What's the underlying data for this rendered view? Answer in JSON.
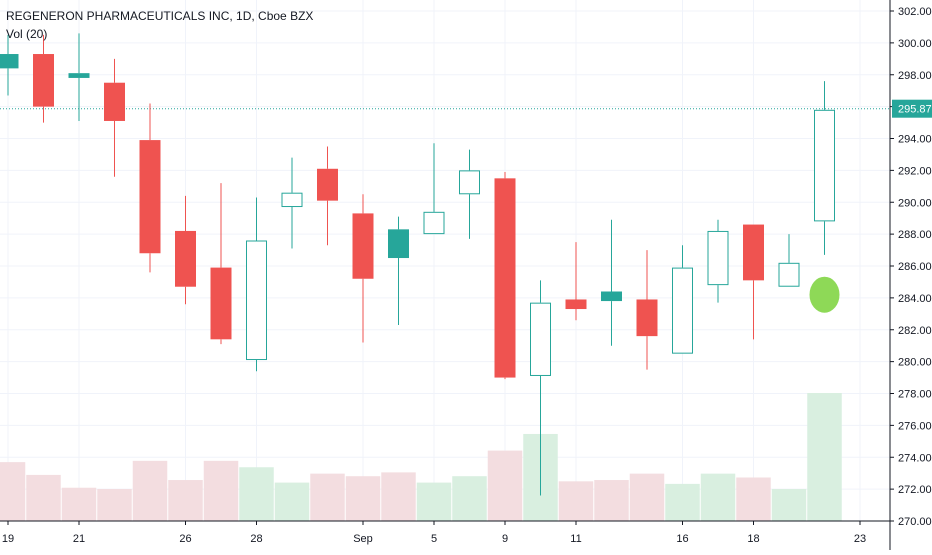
{
  "header": {
    "title": "REGENERON PHARMACEUTICALS INC, 1D, Cboe BZX",
    "volume_label": "Vol (20)"
  },
  "price_label": "295.87",
  "colors": {
    "up": "#26a69a",
    "down": "#ef5350",
    "up_volume": "#d9efe0",
    "down_volume": "#f3dde0",
    "volume_highlight": "#d9efe0",
    "marker": "#8ed957",
    "price_line": "#26a69a"
  },
  "chart_data": {
    "type": "candlestick",
    "symbol": "REGENERON PHARMACEUTICALS INC",
    "interval": "1D",
    "exchange": "Cboe BZX",
    "ylim": [
      270,
      303
    ],
    "y_ticks": [
      "302.00",
      "300.00",
      "298.00",
      "296.00",
      "294.00",
      "292.00",
      "290.00",
      "288.00",
      "286.00",
      "284.00",
      "282.00",
      "280.00",
      "278.00",
      "276.00",
      "274.00",
      "272.00",
      "270.00"
    ],
    "x_ticks": [
      {
        "label": "19",
        "index": 0
      },
      {
        "label": "21",
        "index": 2
      },
      {
        "label": "26",
        "index": 5
      },
      {
        "label": "28",
        "index": 7
      },
      {
        "label": "Sep",
        "index": 10
      },
      {
        "label": "5",
        "index": 12
      },
      {
        "label": "9",
        "index": 14
      },
      {
        "label": "11",
        "index": 16
      },
      {
        "label": "16",
        "index": 19
      },
      {
        "label": "18",
        "index": 21
      },
      {
        "label": "23",
        "index": 24
      }
    ],
    "candles": [
      {
        "open": 298.4,
        "high": 300.5,
        "low": 296.7,
        "close": 299.3,
        "style": "filled",
        "color": "up"
      },
      {
        "open": 299.3,
        "high": 300.5,
        "low": 295.0,
        "close": 296.0,
        "style": "filled",
        "color": "down"
      },
      {
        "open": 297.8,
        "high": 300.6,
        "low": 295.1,
        "close": 298.1,
        "style": "filled",
        "color": "up"
      },
      {
        "open": 297.5,
        "high": 299.0,
        "low": 291.6,
        "close": 295.1,
        "style": "filled",
        "color": "down"
      },
      {
        "open": 293.9,
        "high": 296.2,
        "low": 285.6,
        "close": 286.8,
        "style": "filled",
        "color": "down"
      },
      {
        "open": 288.2,
        "high": 290.4,
        "low": 283.6,
        "close": 284.7,
        "style": "filled",
        "color": "down"
      },
      {
        "open": 285.9,
        "high": 291.2,
        "low": 281.1,
        "close": 281.4,
        "style": "filled",
        "color": "down"
      },
      {
        "open": 280.1,
        "high": 290.3,
        "low": 279.4,
        "close": 287.6,
        "style": "hollow",
        "color": "up"
      },
      {
        "open": 289.7,
        "high": 292.8,
        "low": 287.1,
        "close": 290.6,
        "style": "hollow",
        "color": "up"
      },
      {
        "open": 292.1,
        "high": 293.5,
        "low": 287.3,
        "close": 290.1,
        "style": "filled",
        "color": "down"
      },
      {
        "open": 289.3,
        "high": 290.5,
        "low": 281.2,
        "close": 285.2,
        "style": "filled",
        "color": "down"
      },
      {
        "open": 286.5,
        "high": 289.1,
        "low": 282.3,
        "close": 288.3,
        "style": "filled",
        "color": "up"
      },
      {
        "open": 288.0,
        "high": 293.7,
        "low": 288.0,
        "close": 289.4,
        "style": "hollow",
        "color": "up"
      },
      {
        "open": 290.5,
        "high": 293.3,
        "low": 287.7,
        "close": 292.0,
        "style": "hollow",
        "color": "up"
      },
      {
        "open": 291.5,
        "high": 291.9,
        "low": 278.9,
        "close": 279.0,
        "style": "filled",
        "color": "down"
      },
      {
        "open": 279.1,
        "high": 285.1,
        "low": 271.6,
        "close": 283.7,
        "style": "hollow",
        "color": "up"
      },
      {
        "open": 283.9,
        "high": 287.5,
        "low": 282.6,
        "close": 283.3,
        "style": "filled",
        "color": "down"
      },
      {
        "open": 283.8,
        "high": 288.9,
        "low": 281.0,
        "close": 284.4,
        "style": "filled",
        "color": "up"
      },
      {
        "open": 283.9,
        "high": 287.0,
        "low": 279.5,
        "close": 281.6,
        "style": "filled",
        "color": "down"
      },
      {
        "open": 280.5,
        "high": 287.3,
        "low": 280.5,
        "close": 285.9,
        "style": "hollow",
        "color": "up"
      },
      {
        "open": 284.8,
        "high": 288.9,
        "low": 283.7,
        "close": 288.2,
        "style": "hollow",
        "color": "up"
      },
      {
        "open": 288.6,
        "high": 288.6,
        "low": 281.4,
        "close": 285.1,
        "style": "filled",
        "color": "down"
      },
      {
        "open": 284.7,
        "high": 288.0,
        "low": 284.7,
        "close": 286.2,
        "style": "hollow",
        "color": "up"
      },
      {
        "open": 288.8,
        "high": 297.6,
        "low": 286.7,
        "close": 295.8,
        "style": "hollow",
        "color": "up"
      }
    ],
    "volume": [
      {
        "value": 0.46,
        "color": "down"
      },
      {
        "value": 0.36,
        "color": "down"
      },
      {
        "value": 0.26,
        "color": "down"
      },
      {
        "value": 0.25,
        "color": "down"
      },
      {
        "value": 0.47,
        "color": "down"
      },
      {
        "value": 0.32,
        "color": "down"
      },
      {
        "value": 0.47,
        "color": "down"
      },
      {
        "value": 0.42,
        "color": "up"
      },
      {
        "value": 0.3,
        "color": "up"
      },
      {
        "value": 0.37,
        "color": "down"
      },
      {
        "value": 0.35,
        "color": "down"
      },
      {
        "value": 0.38,
        "color": "down"
      },
      {
        "value": 0.3,
        "color": "up"
      },
      {
        "value": 0.35,
        "color": "up"
      },
      {
        "value": 0.55,
        "color": "down"
      },
      {
        "value": 0.68,
        "color": "up"
      },
      {
        "value": 0.31,
        "color": "down"
      },
      {
        "value": 0.32,
        "color": "down"
      },
      {
        "value": 0.37,
        "color": "down"
      },
      {
        "value": 0.29,
        "color": "up"
      },
      {
        "value": 0.37,
        "color": "up"
      },
      {
        "value": 0.34,
        "color": "down"
      },
      {
        "value": 0.25,
        "color": "up"
      },
      {
        "value": 1.0,
        "color": "up"
      }
    ],
    "last_price": 295.87,
    "marker": {
      "index": 23,
      "price": 284.2
    }
  }
}
